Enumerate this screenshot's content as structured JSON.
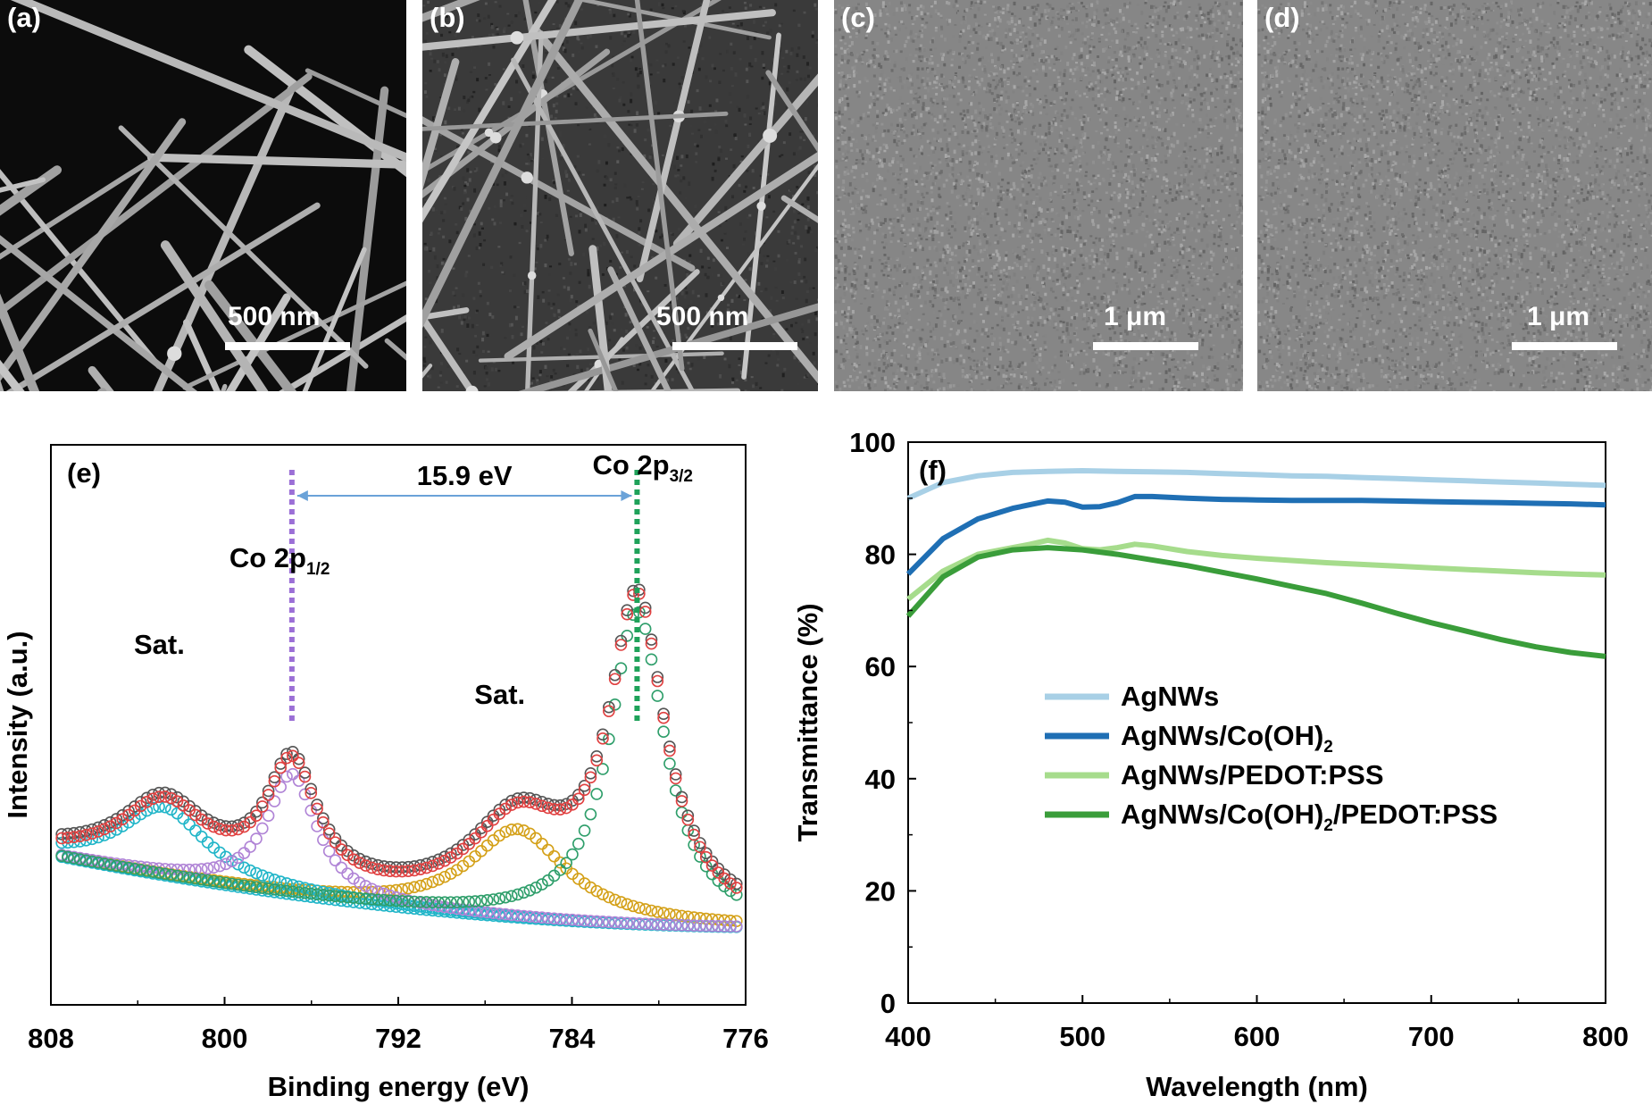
{
  "sem_panels": [
    {
      "label": "(a)",
      "scale": "500 nm",
      "style": "wires-bright"
    },
    {
      "label": "(b)",
      "scale": "500 nm",
      "style": "wires-coated"
    },
    {
      "label": "(c)",
      "scale": "1 μm",
      "style": "film"
    },
    {
      "label": "(d)",
      "scale": "1 μm",
      "style": "film"
    }
  ],
  "chart_data": [
    {
      "panel": "(e)",
      "type": "scatter",
      "xlabel": "Binding energy (eV)",
      "ylabel": "Intensity (a.u.)",
      "xlim": [
        808,
        776
      ],
      "x_reversed": true,
      "xticks": [
        808,
        800,
        792,
        784,
        776
      ],
      "y_ticks_shown": false,
      "peaks": [
        {
          "label": "Co 2p",
          "subscript": "1/2",
          "position": 796.9,
          "color": "#9b6fd6"
        },
        {
          "label": "Co 2p",
          "subscript": "3/2",
          "position": 781.0,
          "color": "#1fa25a"
        }
      ],
      "satellites": [
        {
          "label": "Sat.",
          "position": 802.8
        },
        {
          "label": "Sat.",
          "position": 786.5
        }
      ],
      "annotation": "15.9 eV",
      "fit_components": [
        {
          "color": "#c0392b",
          "role": "envelope"
        },
        {
          "color": "#b084d6",
          "role": "Co 2p1/2"
        },
        {
          "color": "#2e9e6a",
          "role": "Co 2p3/2"
        },
        {
          "color": "#d4a017",
          "role": "satellite 2p3/2"
        },
        {
          "color": "#20b5c8",
          "role": "satellite 2p1/2"
        },
        {
          "color": "#333333",
          "role": "raw data"
        }
      ]
    },
    {
      "panel": "(f)",
      "type": "line",
      "xlabel": "Wavelength (nm)",
      "ylabel": "Transmittance (%)",
      "xlim": [
        400,
        800
      ],
      "ylim": [
        0,
        100
      ],
      "xticks": [
        400,
        500,
        600,
        700,
        800
      ],
      "yticks": [
        0,
        20,
        40,
        60,
        80,
        100
      ],
      "legend_placement": "lower-center",
      "series": [
        {
          "name": "AgNWs",
          "color": "#a8d0e6",
          "x": [
            400,
            420,
            440,
            460,
            480,
            500,
            520,
            540,
            560,
            580,
            600,
            620,
            640,
            660,
            680,
            700,
            720,
            740,
            760,
            780,
            800
          ],
          "y": [
            90.0,
            92.8,
            94.0,
            94.6,
            94.8,
            94.9,
            94.8,
            94.7,
            94.6,
            94.4,
            94.2,
            94.0,
            93.9,
            93.7,
            93.5,
            93.3,
            93.1,
            92.9,
            92.7,
            92.5,
            92.3
          ]
        },
        {
          "name": "AgNWs/Co(OH)",
          "subscript": "2",
          "color": "#1f6fb4",
          "x": [
            400,
            420,
            440,
            460,
            480,
            490,
            500,
            510,
            520,
            530,
            540,
            560,
            580,
            600,
            620,
            640,
            660,
            680,
            700,
            720,
            740,
            760,
            780,
            800
          ],
          "y": [
            76.5,
            82.8,
            86.3,
            88.2,
            89.5,
            89.3,
            88.4,
            88.5,
            89.2,
            90.3,
            90.3,
            90.0,
            89.8,
            89.7,
            89.6,
            89.6,
            89.6,
            89.5,
            89.4,
            89.3,
            89.2,
            89.1,
            89.0,
            88.8
          ]
        },
        {
          "name": "AgNWs/PEDOT:PSS",
          "color": "#a6dc8c",
          "x": [
            400,
            420,
            440,
            460,
            470,
            480,
            490,
            500,
            510,
            520,
            530,
            540,
            560,
            580,
            600,
            620,
            640,
            660,
            680,
            700,
            720,
            740,
            760,
            780,
            800
          ],
          "y": [
            72.0,
            77.0,
            80.0,
            81.2,
            81.8,
            82.5,
            82.0,
            81.0,
            80.8,
            81.2,
            81.8,
            81.5,
            80.5,
            79.8,
            79.3,
            78.9,
            78.5,
            78.2,
            77.9,
            77.6,
            77.3,
            77.0,
            76.7,
            76.5,
            76.3
          ]
        },
        {
          "name": "AgNWs/Co(OH)",
          "subscript": "2",
          "suffix": "/PEDOT:PSS",
          "color": "#3a9d3a",
          "x": [
            400,
            420,
            440,
            460,
            480,
            500,
            520,
            540,
            560,
            580,
            600,
            620,
            640,
            660,
            680,
            700,
            720,
            740,
            760,
            780,
            800
          ],
          "y": [
            69.0,
            76.0,
            79.5,
            80.8,
            81.2,
            80.8,
            80.0,
            79.0,
            78.0,
            76.8,
            75.6,
            74.3,
            73.0,
            71.3,
            69.5,
            67.8,
            66.3,
            64.8,
            63.5,
            62.5,
            61.8
          ]
        }
      ]
    }
  ]
}
